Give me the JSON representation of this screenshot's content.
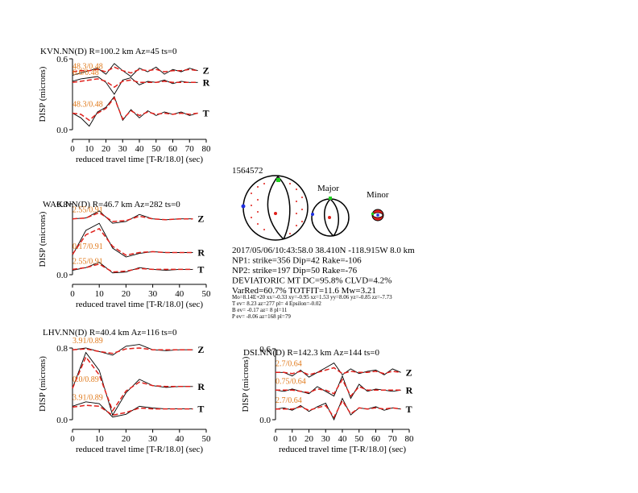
{
  "chart_data": [
    {
      "type": "line",
      "title": "KVN.NN(D) R=100.2 km Az=45 ts=0",
      "xlabel": "reduced travel time [T-R/18.0] (sec)",
      "ylabel": "DISP (microns)",
      "xlim": [
        0,
        80
      ],
      "xticks": [
        0,
        10,
        20,
        30,
        40,
        50,
        60,
        70,
        80
      ],
      "ylim": [
        0,
        0.6
      ],
      "yticks": [
        {
          "value": 0,
          "label": "0.0"
        },
        {
          "value": 0.6,
          "label": "0.6"
        }
      ],
      "observed_color": "#000000",
      "synthetic_color": "#e0201b",
      "x": [
        0,
        5,
        10,
        15,
        20,
        25,
        30,
        35,
        40,
        45,
        50,
        55,
        60,
        65,
        70,
        75
      ],
      "traces": [
        {
          "label": "Z",
          "annotation": "48.3/0.48",
          "observed": [
            0.46,
            0.48,
            0.5,
            0.52,
            0.47,
            0.56,
            0.5,
            0.45,
            0.52,
            0.49,
            0.53,
            0.47,
            0.51,
            0.49,
            0.52,
            0.5
          ],
          "synthetic": [
            0.49,
            0.5,
            0.5,
            0.51,
            0.49,
            0.53,
            0.5,
            0.48,
            0.51,
            0.5,
            0.51,
            0.49,
            0.5,
            0.5,
            0.51,
            0.5
          ]
        },
        {
          "label": "R",
          "annotation": "6.6/0.48",
          "observed": [
            0.41,
            0.43,
            0.44,
            0.45,
            0.4,
            0.3,
            0.42,
            0.44,
            0.38,
            0.41,
            0.4,
            0.42,
            0.39,
            0.41,
            0.4,
            0.4
          ],
          "synthetic": [
            0.4,
            0.41,
            0.42,
            0.43,
            0.41,
            0.36,
            0.41,
            0.42,
            0.4,
            0.4,
            0.4,
            0.41,
            0.4,
            0.4,
            0.4,
            0.4
          ]
        },
        {
          "label": "T",
          "annotation": "48.3/0.48",
          "observed": [
            0.14,
            0.1,
            0.03,
            0.15,
            0.19,
            0.28,
            0.08,
            0.17,
            0.1,
            0.16,
            0.12,
            0.15,
            0.13,
            0.15,
            0.12,
            0.14
          ],
          "synthetic": [
            0.14,
            0.13,
            0.08,
            0.14,
            0.18,
            0.27,
            0.09,
            0.16,
            0.12,
            0.15,
            0.13,
            0.14,
            0.13,
            0.14,
            0.13,
            0.14
          ]
        }
      ]
    },
    {
      "type": "line",
      "title": "WAK.NN(D) R=46.7 km Az=282 ts=0",
      "xlabel": "reduced travel time [T-R/18.0] (sec)",
      "ylabel": "DISP (microns)",
      "xlim": [
        0,
        50
      ],
      "xticks": [
        0,
        10,
        20,
        30,
        40,
        50
      ],
      "ylim": [
        0,
        0.8
      ],
      "yticks": [
        {
          "value": 0,
          "label": "0.0"
        },
        {
          "value": 0.8,
          "label": "0.8"
        }
      ],
      "observed_color": "#000000",
      "synthetic_color": "#e0201b",
      "x": [
        0,
        5,
        10,
        15,
        20,
        25,
        30,
        35,
        40,
        45
      ],
      "traces": [
        {
          "label": "Z",
          "annotation": "2.55/0.91",
          "observed": [
            0.63,
            0.64,
            0.72,
            0.58,
            0.6,
            0.68,
            0.63,
            0.62,
            0.63,
            0.63
          ],
          "synthetic": [
            0.63,
            0.64,
            0.7,
            0.6,
            0.61,
            0.66,
            0.63,
            0.62,
            0.63,
            0.63
          ]
        },
        {
          "label": "R",
          "annotation": "0.17/0.91",
          "observed": [
            0.22,
            0.5,
            0.58,
            0.3,
            0.2,
            0.24,
            0.26,
            0.25,
            0.25,
            0.25
          ],
          "synthetic": [
            0.23,
            0.45,
            0.52,
            0.32,
            0.22,
            0.25,
            0.26,
            0.25,
            0.25,
            0.25
          ]
        },
        {
          "label": "T",
          "annotation": "2.55/0.91",
          "observed": [
            0.05,
            0.08,
            0.14,
            0.02,
            0.03,
            0.08,
            0.06,
            0.05,
            0.06,
            0.06
          ],
          "synthetic": [
            0.06,
            0.08,
            0.12,
            0.03,
            0.04,
            0.07,
            0.06,
            0.06,
            0.06,
            0.06
          ]
        }
      ]
    },
    {
      "type": "line",
      "title": "LHV.NN(D) R=40.4 km Az=116 ts=0",
      "xlabel": "reduced travel time [T-R/18.0] (sec)",
      "ylabel": "DISP (microns)",
      "xlim": [
        0,
        50
      ],
      "xticks": [
        0,
        10,
        20,
        30,
        40,
        50
      ],
      "ylim": [
        0,
        0.8
      ],
      "yticks": [
        {
          "value": 0,
          "label": "0.0"
        },
        {
          "value": 0.8,
          "label": "0.8"
        }
      ],
      "observed_color": "#000000",
      "synthetic_color": "#e0201b",
      "x": [
        0,
        5,
        10,
        15,
        20,
        25,
        30,
        35,
        40,
        45
      ],
      "traces": [
        {
          "label": "Z",
          "annotation": "3.91/0.89",
          "observed": [
            0.78,
            0.8,
            0.76,
            0.72,
            0.82,
            0.84,
            0.78,
            0.77,
            0.78,
            0.78
          ],
          "synthetic": [
            0.78,
            0.79,
            0.76,
            0.74,
            0.79,
            0.8,
            0.78,
            0.78,
            0.78,
            0.78
          ]
        },
        {
          "label": "R",
          "annotation": "0.0/0.89",
          "observed": [
            0.35,
            0.75,
            0.55,
            0.05,
            0.3,
            0.45,
            0.38,
            0.36,
            0.37,
            0.37
          ],
          "synthetic": [
            0.35,
            0.7,
            0.5,
            0.1,
            0.32,
            0.42,
            0.38,
            0.37,
            0.37,
            0.37
          ]
        },
        {
          "label": "T",
          "annotation": "3.91/0.89",
          "observed": [
            0.15,
            0.2,
            0.18,
            0.03,
            0.06,
            0.15,
            0.13,
            0.12,
            0.12,
            0.12
          ],
          "synthetic": [
            0.14,
            0.16,
            0.15,
            0.05,
            0.08,
            0.13,
            0.12,
            0.12,
            0.12,
            0.12
          ]
        }
      ]
    },
    {
      "type": "line",
      "title": "DSI.NN(D) R=142.3 km Az=144 ts=0",
      "xlabel": "reduced travel time [T-R/18.0] (sec)",
      "ylabel": "DISP (microns)",
      "xlim": [
        0,
        80
      ],
      "xticks": [
        0,
        10,
        20,
        30,
        40,
        50,
        60,
        70,
        80
      ],
      "ylim": [
        0,
        0.6
      ],
      "yticks": [
        {
          "value": 0,
          "label": "0.0"
        },
        {
          "value": 0.6,
          "label": "0.6"
        }
      ],
      "observed_color": "#000000",
      "synthetic_color": "#e0201b",
      "x": [
        0,
        5,
        10,
        15,
        20,
        25,
        30,
        35,
        40,
        45,
        50,
        55,
        60,
        65,
        70,
        75
      ],
      "traces": [
        {
          "label": "Z",
          "annotation": "2.7/0.64",
          "observed": [
            0.4,
            0.4,
            0.37,
            0.42,
            0.36,
            0.4,
            0.44,
            0.48,
            0.38,
            0.43,
            0.39,
            0.41,
            0.42,
            0.38,
            0.43,
            0.4
          ],
          "synthetic": [
            0.4,
            0.4,
            0.39,
            0.41,
            0.38,
            0.4,
            0.42,
            0.44,
            0.39,
            0.41,
            0.4,
            0.4,
            0.41,
            0.39,
            0.41,
            0.4
          ]
        },
        {
          "label": "R",
          "annotation": "0.75/0.64",
          "observed": [
            0.25,
            0.24,
            0.26,
            0.24,
            0.22,
            0.28,
            0.24,
            0.2,
            0.37,
            0.18,
            0.3,
            0.24,
            0.26,
            0.25,
            0.24,
            0.25
          ],
          "synthetic": [
            0.25,
            0.25,
            0.25,
            0.24,
            0.23,
            0.26,
            0.25,
            0.22,
            0.34,
            0.2,
            0.28,
            0.25,
            0.25,
            0.25,
            0.25,
            0.25
          ]
        },
        {
          "label": "T",
          "annotation": "2.7/0.64",
          "observed": [
            0.09,
            0.1,
            0.08,
            0.12,
            0.07,
            0.11,
            0.14,
            0.0,
            0.18,
            0.04,
            0.1,
            0.09,
            0.11,
            0.08,
            0.1,
            0.09
          ],
          "synthetic": [
            0.09,
            0.09,
            0.09,
            0.11,
            0.08,
            0.1,
            0.12,
            0.02,
            0.16,
            0.05,
            0.1,
            0.09,
            0.1,
            0.09,
            0.1,
            0.09
          ]
        }
      ]
    }
  ],
  "mechanism": {
    "event_id": "1564572",
    "major_label": "Major",
    "minor_label": "Minor",
    "lines": [
      "2017/05/06/10:43:58.0 38.410N -118.915W 8.0 km",
      "NP1: strike=356 Dip=42 Rake=-106",
      "NP2: strike=197 Dip=50 Rake=-76",
      "DEVIATORIC MT DC=95.8% CLVD=4.2%",
      "VarRed=60.7% TOTFIT=11.6 Mw=3.21"
    ],
    "small_lines": [
      "Mo=8.14E+20 xx=-0.33 xy=-0.95 xz=1.53 yy=8.06 yz=-0.85 zz=-7.73",
      "T ev= 8.23 az=277 pl= 4 Epsilon=-0.02",
      "B ev= -0.17 az= 8 pl=11",
      "P ev= -8.06 az=168 pl=79"
    ]
  }
}
